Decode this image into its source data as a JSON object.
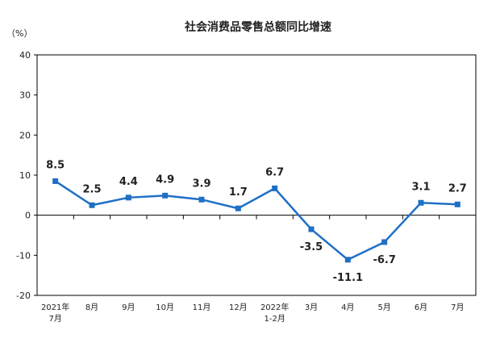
{
  "chart_data": {
    "type": "line",
    "title": "社会消费品零售总额同比增速",
    "unit": "（%）",
    "categories": [
      [
        "2021年",
        "7月"
      ],
      [
        "8月"
      ],
      [
        "9月"
      ],
      [
        "10月"
      ],
      [
        "11月"
      ],
      [
        "12月"
      ],
      [
        "2022年",
        "1-2月"
      ],
      [
        "3月"
      ],
      [
        "4月"
      ],
      [
        "5月"
      ],
      [
        "6月"
      ],
      [
        "7月"
      ]
    ],
    "series": [
      {
        "values": [
          8.5,
          2.5,
          4.4,
          4.9,
          3.9,
          1.7,
          6.7,
          -3.5,
          -11.1,
          -6.7,
          3.1,
          2.7
        ],
        "data_labels": [
          "8.5",
          "2.5",
          "4.4",
          "4.9",
          "3.9",
          "1.7",
          "6.7",
          "-3.5",
          "-11.1",
          "-6.7",
          "3.1",
          "2.7"
        ],
        "label_position": [
          "above",
          "above",
          "above",
          "above",
          "above",
          "above",
          "above",
          "below",
          "below",
          "below",
          "above",
          "above"
        ],
        "color": "#1f6fc5"
      }
    ],
    "ylim": [
      -20,
      40
    ],
    "yticks": [
      -20,
      -10,
      0,
      10,
      20,
      30,
      40
    ],
    "grid": false,
    "legend": "none",
    "axis_color": "#000000"
  }
}
